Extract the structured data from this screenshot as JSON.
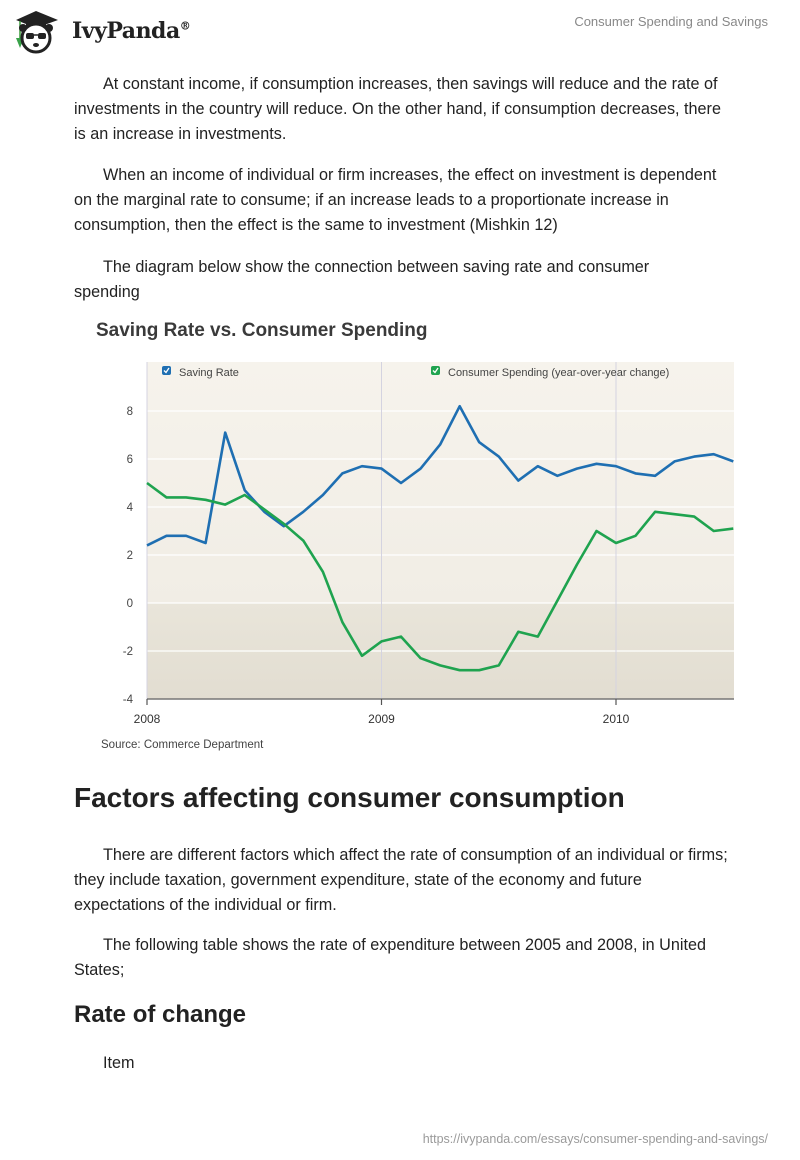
{
  "header": {
    "brand": "IvyPanda",
    "registered_mark": "®",
    "doc_title": "Consumer Spending and Savings",
    "logo_icon": "panda-graduate-icon"
  },
  "body": {
    "paragraphs_top": [
      "At constant income, if consumption increases, then savings will reduce and the rate of investments in the country will reduce. On the other hand, if consumption decreases, there is an increase in investments.",
      "When an income of individual or firm increases, the effect on investment is dependent on the marginal rate to consume; if an increase leads to a proportionate increase in consumption, then the effect is the same to investment (Mishkin 12)",
      "The diagram below show the connection between saving rate and consumer spending"
    ],
    "section_heading": "Factors affecting consumer consumption",
    "paragraphs_section": [
      "There are different factors which affect the rate of consumption of an individual or firms; they include taxation, government expenditure, state of the economy and future expectations of the individual or firm.",
      "The following table shows the rate of expenditure between 2005 and 2008, in United States;"
    ],
    "sub_heading": "Rate of change",
    "table_first_cell": "Item"
  },
  "footer": {
    "url": "https://ivypanda.com/essays/consumer-spending-and-savings/"
  },
  "chart_data": {
    "type": "line",
    "title": "Saving Rate vs. Consumer Spending",
    "source": "Source: Commerce Department",
    "xlabel": "",
    "ylabel": "",
    "x_unit": "month index from Jan 2008",
    "x_ticks": [
      {
        "label": "2008",
        "x": 0
      },
      {
        "label": "2009",
        "x": 12
      },
      {
        "label": "2010",
        "x": 24
      }
    ],
    "xlim": [
      0,
      30
    ],
    "ylim": [
      -4,
      10
    ],
    "y_ticks": [
      8,
      6,
      4,
      2,
      0,
      -2,
      -4
    ],
    "grid": true,
    "legend_placement": "top",
    "shaded_below_zero": true,
    "series": [
      {
        "name": "Saving Rate",
        "color": "#1f6fb2",
        "values": [
          2.4,
          2.8,
          2.8,
          2.5,
          7.1,
          4.7,
          3.8,
          3.2,
          3.8,
          4.5,
          5.4,
          5.7,
          5.6,
          5.0,
          5.6,
          6.6,
          8.2,
          6.7,
          6.1,
          5.1,
          5.7,
          5.3,
          5.6,
          5.8,
          5.7,
          5.4,
          5.3,
          5.9,
          6.1,
          6.2,
          5.9
        ]
      },
      {
        "name": "Consumer Spending (year-over-year change)",
        "color": "#1fa34f",
        "values": [
          5.0,
          4.4,
          4.4,
          4.3,
          4.1,
          4.5,
          3.9,
          3.3,
          2.6,
          1.3,
          -0.8,
          -2.2,
          -1.6,
          -1.4,
          -2.3,
          -2.6,
          -2.8,
          -2.8,
          -2.6,
          -1.2,
          -1.4,
          0.1,
          1.6,
          3.0,
          2.5,
          2.8,
          3.8,
          3.7,
          3.6,
          3.0,
          3.1
        ]
      }
    ]
  }
}
